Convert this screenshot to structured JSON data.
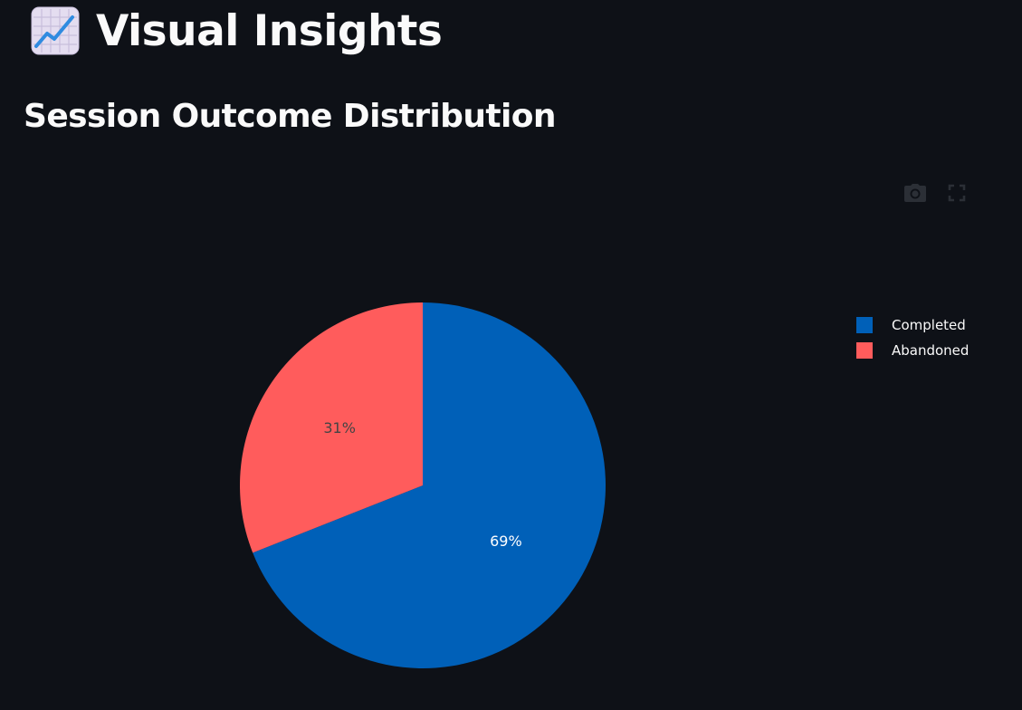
{
  "header": {
    "emoji_icon": "chart-increasing-icon",
    "title": "Visual Insights"
  },
  "section": {
    "title": "Session Outcome Distribution"
  },
  "modebar": {
    "buttons": [
      "camera-icon",
      "fullscreen-icon"
    ]
  },
  "colors": {
    "background": "#0e1117",
    "completed": "#0060b8",
    "abandoned": "#ff5c5c",
    "text": "#fafafa"
  },
  "chart_data": {
    "type": "pie",
    "categories": [
      "Completed",
      "Abandoned"
    ],
    "values": [
      69,
      31
    ],
    "slice_labels": [
      "69%",
      "31%"
    ],
    "colors": [
      "#0060b8",
      "#ff5c5c"
    ],
    "legend_placement": "right"
  }
}
